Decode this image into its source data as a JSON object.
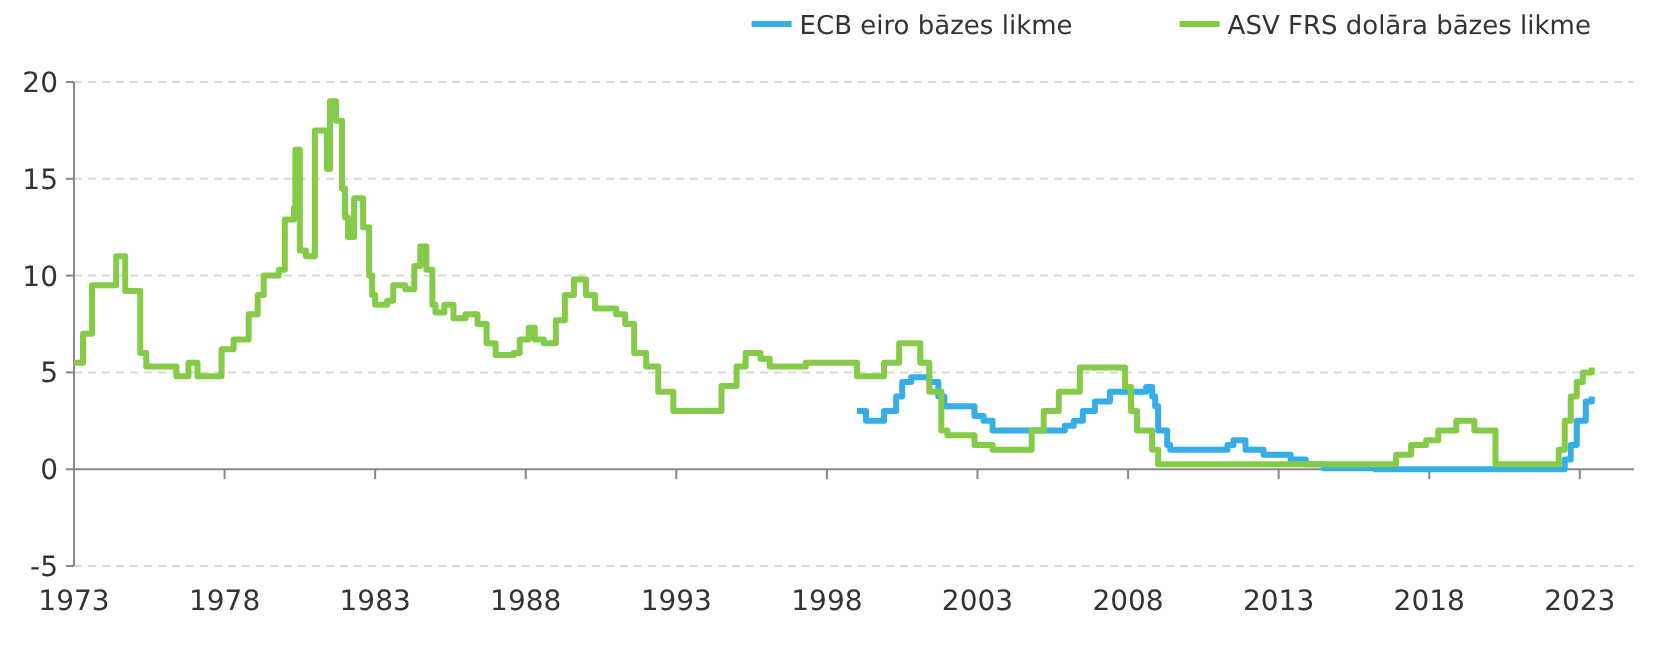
{
  "chart_data": {
    "type": "step",
    "xlim": [
      1973,
      2024.8
    ],
    "xticks": [
      1973,
      1978,
      1983,
      1988,
      1993,
      1998,
      2003,
      2008,
      2013,
      2018,
      2023
    ],
    "ylim": [
      -5,
      20
    ],
    "yticks": [
      -5,
      0,
      5,
      10,
      15,
      20
    ],
    "grid": "y",
    "legend": "top right",
    "series": [
      {
        "name": "ECB eiro bāzes likme",
        "color": "#35aee8",
        "x": [
          1999.0,
          1999.3,
          1999.9,
          2000.3,
          2000.5,
          2000.8,
          2001.4,
          2001.7,
          2001.9,
          2002.9,
          2003.2,
          2003.5,
          2005.9,
          2006.2,
          2006.5,
          2006.9,
          2007.4,
          2008.6,
          2008.8,
          2008.9,
          2009.0,
          2009.3,
          2009.4,
          2011.3,
          2011.5,
          2011.9,
          2012.5,
          2013.4,
          2013.9,
          2014.5,
          2016.2,
          2022.5,
          2022.7,
          2022.9,
          2023.2,
          2023.4
        ],
        "values": [
          3.0,
          2.5,
          3.0,
          3.75,
          4.5,
          4.75,
          4.5,
          3.75,
          3.25,
          2.75,
          2.5,
          2.0,
          2.25,
          2.5,
          3.0,
          3.5,
          4.0,
          4.25,
          3.75,
          3.25,
          2.0,
          1.25,
          1.0,
          1.25,
          1.5,
          1.0,
          0.75,
          0.5,
          0.25,
          0.05,
          0,
          0.5,
          1.25,
          2.5,
          3.5,
          3.75
        ]
      },
      {
        "name": "ASV FRS dolāra bāzes likme",
        "color": "#84cc48",
        "x": [
          1973.0,
          1973.3,
          1973.6,
          1974.3,
          1974.4,
          1974.7,
          1975.0,
          1975.2,
          1975.4,
          1976.3,
          1976.4,
          1976.8,
          1977.1,
          1977.8,
          1977.9,
          1978.3,
          1978.8,
          1979.1,
          1979.3,
          1979.8,
          1980.0,
          1980.3,
          1980.35,
          1980.5,
          1980.7,
          1981.0,
          1981.3,
          1981.4,
          1981.5,
          1981.7,
          1981.9,
          1982.0,
          1982.1,
          1982.3,
          1982.6,
          1982.8,
          1982.9,
          1983.0,
          1983.4,
          1983.6,
          1984.0,
          1984.3,
          1984.5,
          1984.7,
          1984.9,
          1985.0,
          1985.3,
          1985.6,
          1986.0,
          1986.4,
          1986.7,
          1987.0,
          1987.6,
          1987.8,
          1988.1,
          1988.3,
          1988.6,
          1989.0,
          1989.3,
          1989.6,
          1990.0,
          1990.3,
          1991.0,
          1991.3,
          1991.6,
          1992.0,
          1992.4,
          1992.9,
          1994.1,
          1994.5,
          1995.0,
          1995.3,
          1995.8,
          1996.1,
          1997.3,
          1998.7,
          1999.0,
          1999.5,
          1999.9,
          2000.4,
          2000.9,
          2001.1,
          2001.4,
          2001.8,
          2002.0,
          2002.9,
          2003.5,
          2004.4,
          2004.8,
          2005.2,
          2005.7,
          2006.4,
          2007.6,
          2007.9,
          2008.1,
          2008.3,
          2008.8,
          2009.0,
          2015.9,
          2016.9,
          2017.4,
          2017.9,
          2018.3,
          2018.9,
          2019.5,
          2020.2,
          2022.1,
          2022.3,
          2022.5,
          2022.7,
          2022.9,
          2023.1,
          2023.4
        ],
        "values": [
          5.5,
          7,
          9.5,
          9.5,
          11,
          9.2,
          9.2,
          6,
          5.3,
          5.3,
          4.8,
          5.5,
          4.8,
          4.8,
          6.2,
          6.7,
          8,
          9,
          10,
          10.3,
          12.9,
          13.5,
          16.5,
          11.3,
          11,
          17.5,
          17.5,
          15.5,
          19,
          18,
          14.5,
          13,
          12,
          14,
          12.5,
          10,
          9,
          8.5,
          8.7,
          9.5,
          9.3,
          10.5,
          11.5,
          10.3,
          8.5,
          8.1,
          8.5,
          7.8,
          8,
          7.5,
          6.5,
          5.9,
          6,
          6.7,
          7.3,
          6.7,
          6.5,
          7.7,
          9,
          9.8,
          9,
          8.3,
          8,
          7.5,
          6,
          5.3,
          4,
          3,
          3,
          4.3,
          5.3,
          6,
          5.7,
          5.3,
          5.5,
          5.5,
          4.8,
          4.8,
          5.5,
          6.5,
          6.5,
          5.5,
          4,
          2,
          1.75,
          1.25,
          1,
          1,
          2,
          3,
          4,
          5.25,
          5.25,
          4.25,
          3,
          2,
          1,
          0.25,
          0.25,
          0.75,
          1.25,
          1.5,
          2,
          2.5,
          2,
          0.25,
          0.25,
          1,
          2.5,
          3.75,
          4.5,
          5,
          5.25
        ]
      }
    ]
  }
}
